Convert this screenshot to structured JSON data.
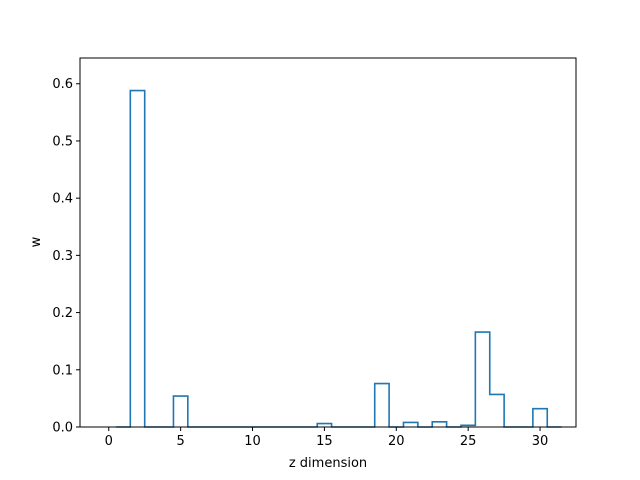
{
  "chart_data": {
    "type": "bar",
    "style": "step-histogram",
    "title": "",
    "xlabel": "z dimension",
    "ylabel": "w",
    "xlim": [
      -2.0,
      32.5
    ],
    "ylim": [
      0,
      0.645
    ],
    "xticks": [
      0,
      5,
      10,
      15,
      20,
      25,
      30
    ],
    "yticks": [
      0.0,
      0.1,
      0.2,
      0.3,
      0.4,
      0.5,
      0.6
    ],
    "bin_width": 1,
    "bin_start": 0.5,
    "x": [
      0,
      1,
      2,
      3,
      4,
      5,
      6,
      7,
      8,
      9,
      10,
      11,
      12,
      13,
      14,
      15,
      16,
      17,
      18,
      19,
      20,
      21,
      22,
      23,
      24,
      25,
      26,
      27,
      28,
      29,
      30
    ],
    "values": [
      0,
      0.588,
      0,
      0,
      0.054,
      0,
      0,
      0,
      0,
      0,
      0,
      0,
      0,
      0,
      0.006,
      0,
      0,
      0,
      0.076,
      0,
      0.008,
      0,
      0.009,
      0,
      0.003,
      0.166,
      0.057,
      0,
      0,
      0.032,
      0
    ],
    "line_color": "#1f77b4",
    "grid": false,
    "legend": "none"
  }
}
